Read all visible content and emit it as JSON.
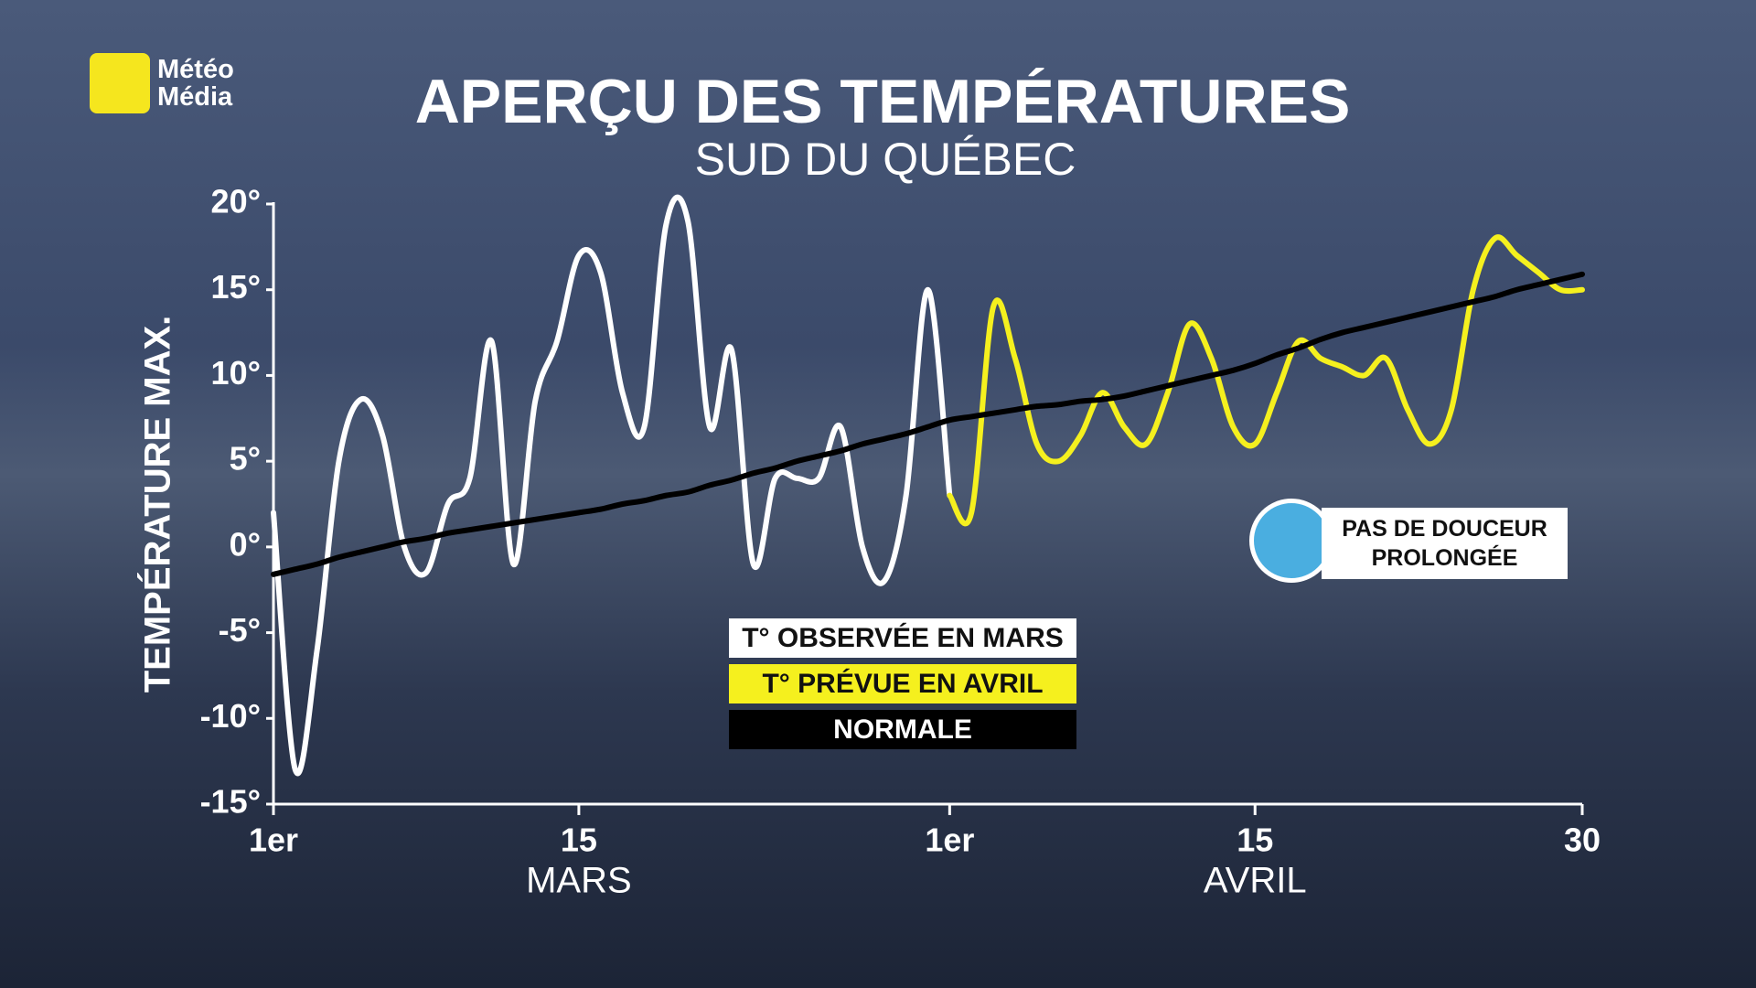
{
  "logo": "Météo Média",
  "chart_data": {
    "type": "line",
    "title": "APERÇU DES TEMPÉRATURES",
    "subtitle": "SUD DU QUÉBEC",
    "y_label": "TEMPÉRATURE MAX.",
    "x_group_labels": [
      "MARS",
      "AVRIL"
    ],
    "annotation": "PAS DE DOUCEUR PROLONGÉE",
    "grid": false,
    "x": [
      1,
      2,
      3,
      4,
      5,
      6,
      7,
      8,
      9,
      10,
      11,
      12,
      13,
      14,
      15,
      16,
      17,
      18,
      19,
      20,
      21,
      22,
      23,
      24,
      25,
      26,
      27,
      28,
      29,
      30,
      31,
      32,
      33,
      34,
      35,
      36,
      37,
      38,
      39,
      40,
      41,
      42,
      43,
      44,
      45,
      46,
      47,
      48,
      49,
      50,
      51,
      52,
      53,
      54,
      55,
      56,
      57,
      58,
      59,
      60,
      61
    ],
    "xlim": [
      1,
      61
    ],
    "xticks": [
      {
        "value": 1,
        "label": "1er"
      },
      15,
      {
        "value": 32,
        "label": "1er"
      },
      {
        "value": 46,
        "label": "15"
      },
      {
        "value": 61,
        "label": "30"
      }
    ],
    "ylim": [
      -15,
      20
    ],
    "yticks": [
      {
        "value": 20,
        "label": "20°"
      },
      {
        "value": 15,
        "label": "15°"
      },
      {
        "value": 10,
        "label": "10°"
      },
      {
        "value": 5,
        "label": "5°"
      },
      {
        "value": 0,
        "label": "0°"
      },
      {
        "value": -5,
        "label": "-5°"
      },
      {
        "value": -10,
        "label": "-10°"
      },
      {
        "value": -15,
        "label": "-15°"
      }
    ],
    "series": [
      {
        "name": "T° OBSERVÉE EN MARS",
        "color": "#ffffff",
        "values": [
          2,
          -13,
          -6,
          5,
          8.6,
          6.5,
          0,
          -1.5,
          2.5,
          4,
          12,
          -1,
          8.5,
          12,
          17,
          16,
          9,
          7,
          18.8,
          19,
          7,
          11.5,
          -1,
          4,
          4,
          4,
          7,
          0,
          -2,
          3,
          15,
          3,
          null,
          null,
          null,
          null,
          null,
          null,
          null,
          null,
          null,
          null,
          null,
          null,
          null,
          null,
          null,
          null,
          null,
          null,
          null,
          null,
          null,
          null,
          null,
          null,
          null,
          null,
          null,
          null,
          null
        ]
      },
      {
        "name": "T° PRÉVUE EN AVRIL",
        "color": "#f5f01e",
        "values": [
          null,
          null,
          null,
          null,
          null,
          null,
          null,
          null,
          null,
          null,
          null,
          null,
          null,
          null,
          null,
          null,
          null,
          null,
          null,
          null,
          null,
          null,
          null,
          null,
          null,
          null,
          null,
          null,
          null,
          null,
          null,
          3,
          2,
          14,
          11,
          6,
          5,
          6.5,
          9,
          7,
          6,
          9,
          13,
          11,
          7,
          6,
          9,
          12,
          11,
          10.5,
          10,
          11,
          8,
          6,
          8,
          15,
          18,
          17,
          16,
          15,
          15
        ]
      },
      {
        "name": "NORMALE",
        "color": "#000000",
        "values": [
          -1.6,
          -1.3,
          -1.0,
          -0.6,
          -0.3,
          0,
          0.3,
          0.5,
          0.8,
          1.0,
          1.2,
          1.4,
          1.6,
          1.8,
          2.0,
          2.2,
          2.5,
          2.7,
          3.0,
          3.2,
          3.6,
          3.9,
          4.3,
          4.6,
          5.0,
          5.3,
          5.6,
          6.0,
          6.3,
          6.6,
          7.0,
          7.4,
          7.6,
          7.8,
          8.0,
          8.2,
          8.3,
          8.5,
          8.6,
          8.8,
          9.1,
          9.4,
          9.7,
          10.0,
          10.3,
          10.7,
          11.2,
          11.6,
          12.1,
          12.5,
          12.8,
          13.1,
          13.4,
          13.7,
          14.0,
          14.3,
          14.6,
          15.0,
          15.3,
          15.6,
          15.9
        ]
      }
    ]
  }
}
